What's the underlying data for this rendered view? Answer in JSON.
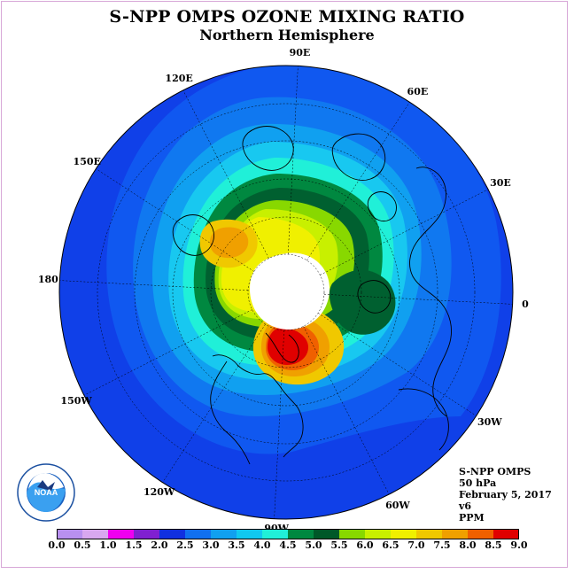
{
  "title": "S-NPP OMPS OZONE MIXING RATIO",
  "subtitle": "Northern Hemisphere",
  "longitude_labels": [
    {
      "text": "90E",
      "lon": 90
    },
    {
      "text": "60E",
      "lon": 60
    },
    {
      "text": "30E",
      "lon": 30
    },
    {
      "text": "0",
      "lon": 0
    },
    {
      "text": "30W",
      "lon": -30
    },
    {
      "text": "60W",
      "lon": -60
    },
    {
      "text": "90W",
      "lon": -90
    },
    {
      "text": "120W",
      "lon": -120
    },
    {
      "text": "150W",
      "lon": -150
    },
    {
      "text": "180",
      "lon": 180
    },
    {
      "text": "150E",
      "lon": 150
    },
    {
      "text": "120E",
      "lon": 120
    }
  ],
  "info": {
    "instrument": "S-NPP OMPS",
    "level": "50 hPa",
    "date": "February 5, 2017",
    "version": "v6",
    "units": "PPM"
  },
  "logo_text": "NOAA",
  "colors": {
    "outer_field": "#1040e8",
    "land_outline": "#000000",
    "frame_border": "#d8a8d8"
  },
  "colorbar": {
    "ticks": [
      "0.0",
      "0.5",
      "1.0",
      "1.5",
      "2.0",
      "2.5",
      "3.0",
      "3.5",
      "4.0",
      "4.5",
      "5.0",
      "5.5",
      "6.0",
      "6.5",
      "7.0",
      "7.5",
      "8.0",
      "8.5",
      "9.0"
    ],
    "colors": [
      "#b890f0",
      "#d8a8f0",
      "#f000f0",
      "#8020d0",
      "#1030e0",
      "#1070f0",
      "#10a0f0",
      "#10c8f0",
      "#20f0d8",
      "#008840",
      "#005828",
      "#88d800",
      "#c8f000",
      "#f0f000",
      "#f0c800",
      "#f0a000",
      "#f06000",
      "#e00000",
      "#805030"
    ]
  }
}
